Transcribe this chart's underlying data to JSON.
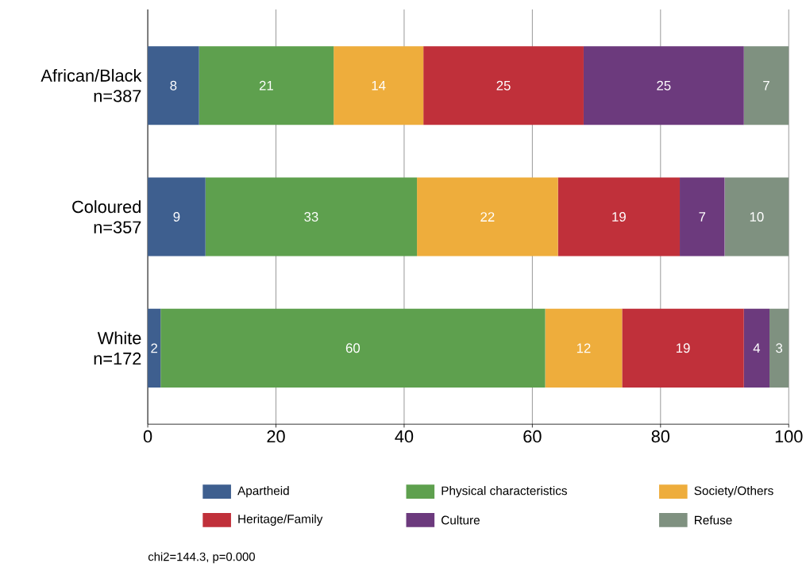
{
  "chart_data": {
    "type": "bar",
    "orientation": "horizontal",
    "stacked": true,
    "categories": [
      "African/Black n=387",
      "Coloured n=357",
      "White n=172"
    ],
    "series": [
      {
        "name": "Apartheid",
        "color": "#3e5f8f",
        "values": [
          8,
          9,
          2
        ]
      },
      {
        "name": "Physical characteristics",
        "color": "#5ea04e",
        "values": [
          21,
          33,
          60
        ]
      },
      {
        "name": "Society/Others",
        "color": "#eead3c",
        "values": [
          14,
          22,
          12
        ]
      },
      {
        "name": "Heritage/Family",
        "color": "#c0303a",
        "values": [
          25,
          19,
          19
        ]
      },
      {
        "name": "Culture",
        "color": "#6c3a7d",
        "values": [
          25,
          7,
          4
        ]
      },
      {
        "name": "Refuse",
        "color": "#7f9180",
        "values": [
          7,
          10,
          3
        ]
      }
    ],
    "xlim": [
      0,
      100
    ],
    "xticks": [
      0,
      20,
      40,
      60,
      80,
      100
    ],
    "grid": "x",
    "legend": "bottom",
    "data_labels": true,
    "annotations": [
      "chi2=144.3, p=0.000"
    ]
  }
}
